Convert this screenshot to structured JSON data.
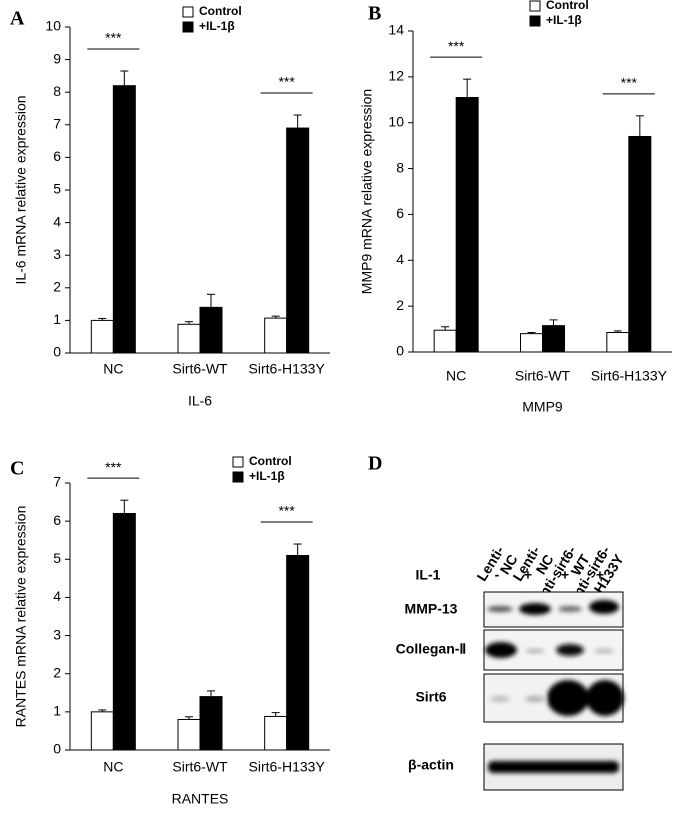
{
  "chart_data": [
    {
      "type": "bar",
      "panel_label": "A",
      "ylabel": "IL-6 mRNA relative expression",
      "xlabel": "IL-6",
      "categories": [
        "NC",
        "Sirt6-WT",
        "Sirt6-H133Y"
      ],
      "ylim": [
        0,
        10
      ],
      "yticks": [
        0,
        1,
        2,
        3,
        4,
        5,
        6,
        7,
        8,
        9,
        10
      ],
      "legend": "upper right",
      "significance": [
        "***",
        null,
        "***"
      ],
      "series": [
        {
          "name": "Control",
          "color": "#ffffff",
          "values": [
            1.0,
            0.88,
            1.07
          ],
          "errors": [
            0.06,
            0.08,
            0.06
          ]
        },
        {
          "name": "+IL-1β",
          "color": "#000000",
          "values": [
            8.2,
            1.4,
            6.9
          ],
          "errors": [
            0.45,
            0.4,
            0.4
          ]
        }
      ]
    },
    {
      "type": "bar",
      "panel_label": "B",
      "ylabel": "MMP9 mRNA relative expression",
      "xlabel": "MMP9",
      "categories": [
        "NC",
        "Sirt6-WT",
        "Sirt6-H133Y"
      ],
      "ylim": [
        0,
        14
      ],
      "yticks": [
        0,
        2,
        4,
        6,
        8,
        10,
        12,
        14
      ],
      "legend": "upper right",
      "significance": [
        "***",
        null,
        "***"
      ],
      "series": [
        {
          "name": "Control",
          "color": "#ffffff",
          "values": [
            0.95,
            0.8,
            0.85
          ],
          "errors": [
            0.15,
            0.05,
            0.07
          ]
        },
        {
          "name": "+IL-1β",
          "color": "#000000",
          "values": [
            11.1,
            1.15,
            9.4
          ],
          "errors": [
            0.8,
            0.25,
            0.9
          ]
        }
      ]
    },
    {
      "type": "bar",
      "panel_label": "C",
      "ylabel": "RANTES mRNA relative expression",
      "xlabel": "RANTES",
      "categories": [
        "NC",
        "Sirt6-WT",
        "Sirt6-H133Y"
      ],
      "ylim": [
        0,
        7
      ],
      "yticks": [
        0,
        1,
        2,
        3,
        4,
        5,
        6,
        7
      ],
      "legend": "upper right",
      "significance": [
        "***",
        null,
        "***"
      ],
      "series": [
        {
          "name": "Control",
          "color": "#ffffff",
          "values": [
            1.0,
            0.8,
            0.88
          ],
          "errors": [
            0.05,
            0.07,
            0.1
          ]
        },
        {
          "name": "+IL-1β",
          "color": "#000000",
          "values": [
            6.2,
            1.4,
            5.1
          ],
          "errors": [
            0.35,
            0.15,
            0.3
          ]
        }
      ]
    }
  ],
  "blot": {
    "panel_label": "D",
    "treatment_label": "IL-1",
    "lanes": [
      {
        "lines": [
          "Lenti-",
          "NC"
        ],
        "il1": "-"
      },
      {
        "lines": [
          "Lenti-",
          "NC"
        ],
        "il1": "+"
      },
      {
        "lines": [
          "Lenti-sirt6-",
          "WT"
        ],
        "il1": "+"
      },
      {
        "lines": [
          "Lenti-sirt6-",
          "H133Y"
        ],
        "il1": "+"
      }
    ],
    "rows": [
      "MMP-13",
      "Collegan-Ⅱ",
      "Sirt6",
      "β-actin"
    ]
  }
}
